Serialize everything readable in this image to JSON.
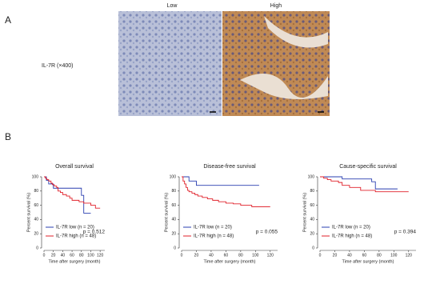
{
  "panel_a": {
    "label": "A",
    "columns": [
      "Low",
      "High"
    ],
    "row_label": "IL-7R (×400)"
  },
  "panel_b": {
    "label": "B"
  },
  "chart_data": [
    {
      "type": "line",
      "title": "Overall survival",
      "xlabel": "Time after surgery (month)",
      "ylabel": "Percent survival (%)",
      "annotation": "p = 0.512",
      "xlim": [
        0,
        130
      ],
      "xticks": [
        0,
        20,
        40,
        60,
        80,
        100,
        120
      ],
      "ylim": [
        0,
        100
      ],
      "yticks": [
        0,
        20,
        40,
        60,
        80,
        100
      ],
      "step": true,
      "series": [
        {
          "name": "IL-7R low (n = 20)",
          "color": "#2a3fb0",
          "x": [
            0,
            5,
            10,
            20,
            80,
            85,
            100
          ],
          "values": [
            100,
            95,
            90,
            84,
            74,
            49,
            49
          ]
        },
        {
          "name": "IL-7R high (n = 48)",
          "color": "#e0202a",
          "x": [
            0,
            3,
            6,
            10,
            15,
            18,
            22,
            27,
            30,
            35,
            40,
            48,
            55,
            60,
            75,
            85,
            100,
            110,
            120
          ],
          "values": [
            100,
            98,
            96,
            94,
            91,
            89,
            87,
            85,
            80,
            78,
            75,
            73,
            70,
            67,
            65,
            63,
            60,
            56,
            56
          ]
        }
      ]
    },
    {
      "type": "line",
      "title": "Disease-free survival",
      "xlabel": "Time after surgery (month)",
      "ylabel": "Percent survival (%)",
      "annotation": "p = 0.055",
      "xlim": [
        0,
        130
      ],
      "xticks": [
        0,
        20,
        40,
        60,
        80,
        100,
        120
      ],
      "ylim": [
        0,
        100
      ],
      "yticks": [
        0,
        20,
        40,
        60,
        80,
        100
      ],
      "step": true,
      "series": [
        {
          "name": "IL-7R low (n = 20)",
          "color": "#2a3fb0",
          "x": [
            0,
            10,
            20,
            105
          ],
          "values": [
            100,
            94,
            88,
            88
          ]
        },
        {
          "name": "IL-7R high (n = 48)",
          "color": "#e0202a",
          "x": [
            0,
            2,
            4,
            6,
            8,
            10,
            14,
            18,
            22,
            28,
            35,
            42,
            50,
            60,
            70,
            80,
            95,
            105,
            120
          ],
          "values": [
            100,
            94,
            90,
            85,
            81,
            79,
            77,
            75,
            73,
            71,
            69,
            67,
            65,
            63,
            62,
            60,
            58,
            58,
            58
          ]
        }
      ]
    },
    {
      "type": "line",
      "title": "Cause-specific survival",
      "xlabel": "Time after surgery (month)",
      "ylabel": "Percent survival (%)",
      "annotation": "p = 0.394",
      "xlim": [
        0,
        130
      ],
      "xticks": [
        0,
        20,
        40,
        60,
        80,
        100,
        120
      ],
      "ylim": [
        0,
        100
      ],
      "yticks": [
        0,
        20,
        40,
        60,
        80,
        100
      ],
      "step": true,
      "series": [
        {
          "name": "IL-7R low (n = 20)",
          "color": "#2a3fb0",
          "x": [
            0,
            10,
            30,
            70,
            75,
            105
          ],
          "values": [
            100,
            100,
            97,
            93,
            83,
            83
          ]
        },
        {
          "name": "IL-7R high (n = 48)",
          "color": "#e0202a",
          "x": [
            0,
            5,
            10,
            15,
            25,
            30,
            40,
            55,
            75,
            120
          ],
          "values": [
            100,
            98,
            96,
            94,
            92,
            88,
            85,
            81,
            79,
            79
          ]
        }
      ]
    }
  ]
}
